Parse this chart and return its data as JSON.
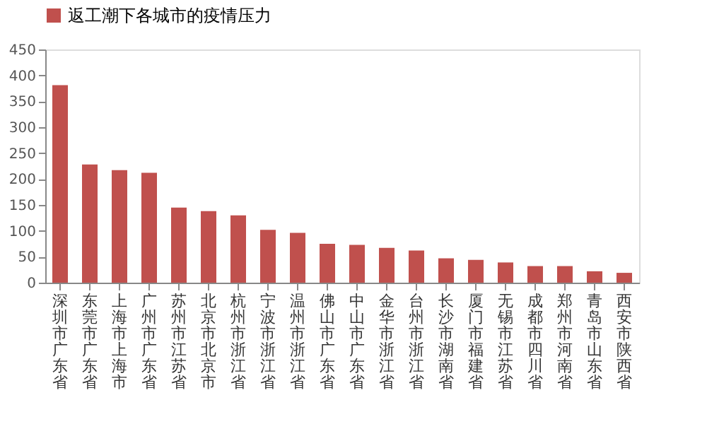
{
  "chart_data": {
    "type": "bar",
    "categories": [
      "深圳市广东省",
      "东莞市广东省",
      "上海市上海市",
      "广州市广东省",
      "苏州市江苏省",
      "北京市北京市",
      "杭州市浙江省",
      "宁波市浙江省",
      "温州市浙江省",
      "佛山市广东省",
      "中山市广东省",
      "金华市浙江省",
      "台州市浙江省",
      "长沙市湖南省",
      "厦门市福建省",
      "无锡市江苏省",
      "成都市四川省",
      "郑州市河南省",
      "青岛市山东省",
      "西安市陕西省"
    ],
    "series": [
      {
        "name": "返工潮下各城市的疫情压力",
        "color": "#c0504d",
        "values": [
          381,
          228,
          217,
          212,
          145,
          138,
          130,
          102,
          96,
          75,
          73,
          67,
          62,
          47,
          44,
          39,
          32,
          32,
          22,
          19
        ]
      }
    ],
    "ylim": [
      0,
      450
    ],
    "yticks": [
      0,
      50,
      100,
      150,
      200,
      250,
      300,
      350,
      400,
      450
    ],
    "grid": false,
    "legend": "top"
  }
}
